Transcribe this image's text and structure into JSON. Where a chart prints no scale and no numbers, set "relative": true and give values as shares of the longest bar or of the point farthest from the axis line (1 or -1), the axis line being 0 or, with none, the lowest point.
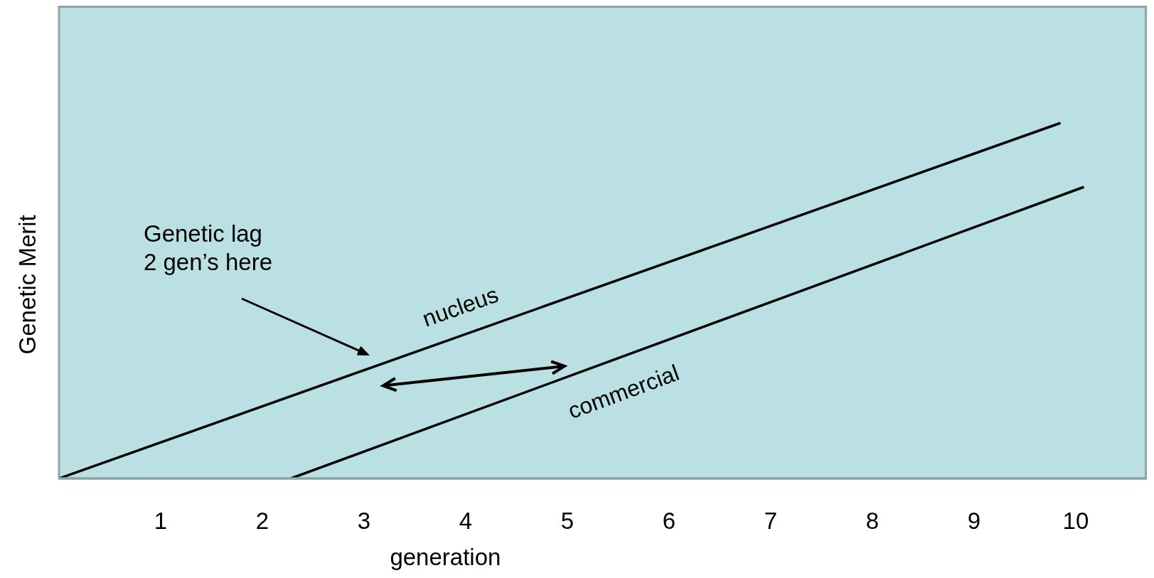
{
  "chart_data": {
    "type": "line",
    "relative": true,
    "xlabel": "generation",
    "ylabel": "Genetic Merit",
    "xlim": [
      0,
      10.7
    ],
    "xticks": [
      1,
      2,
      3,
      4,
      5,
      6,
      7,
      8,
      9,
      10
    ],
    "grid": false,
    "legend": false,
    "marker": "none",
    "line_style": "solid",
    "annotations": [
      "Genetic lag\n2 gen’s here"
    ],
    "series": [
      {
        "name": "nucleus",
        "color": "#000000",
        "x": [
          0,
          9.85
        ],
        "values": [
          0,
          1
        ]
      },
      {
        "name": "commercial",
        "color": "#000000",
        "x": [
          2.28,
          10.08
        ],
        "values": [
          0,
          0.82
        ]
      }
    ]
  }
}
